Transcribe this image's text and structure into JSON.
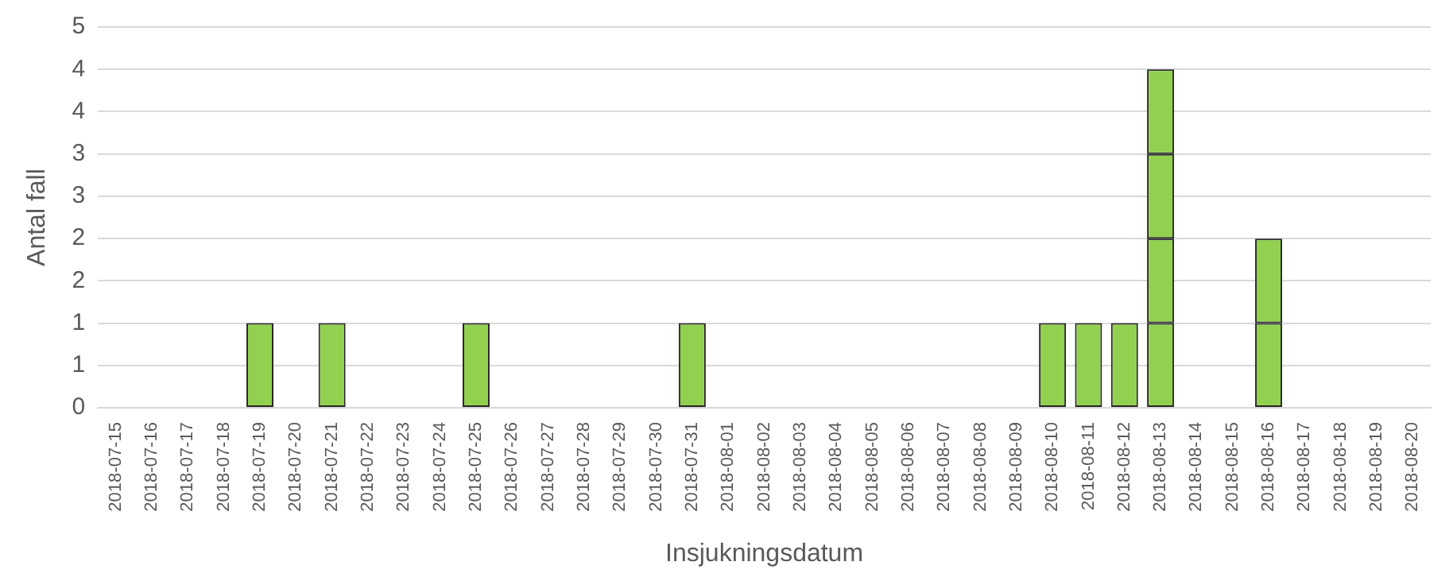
{
  "chart_data": {
    "type": "bar",
    "stacked": true,
    "xlabel": "Insjukningsdatum",
    "ylabel": "Antal fall",
    "grid": "y",
    "categories": [
      "2018-07-15",
      "2018-07-16",
      "2018-07-17",
      "2018-07-18",
      "2018-07-19",
      "2018-07-20",
      "2018-07-21",
      "2018-07-22",
      "2018-07-23",
      "2018-07-24",
      "2018-07-25",
      "2018-07-26",
      "2018-07-27",
      "2018-07-28",
      "2018-07-29",
      "2018-07-30",
      "2018-07-31",
      "2018-08-01",
      "2018-08-02",
      "2018-08-03",
      "2018-08-04",
      "2018-08-05",
      "2018-08-06",
      "2018-08-07",
      "2018-08-08",
      "2018-08-09",
      "2018-08-10",
      "2018-08-11",
      "2018-08-12",
      "2018-08-13",
      "2018-08-14",
      "2018-08-15",
      "2018-08-16",
      "2018-08-17",
      "2018-08-18",
      "2018-08-19",
      "2018-08-20"
    ],
    "series": [
      {
        "color": "#92d050",
        "values": [
          null,
          null,
          null,
          null,
          1,
          null,
          1,
          null,
          null,
          null,
          1,
          null,
          null,
          null,
          null,
          null,
          1,
          null,
          null,
          null,
          null,
          null,
          null,
          null,
          null,
          null,
          1,
          1,
          1,
          1,
          null,
          null,
          1,
          null,
          null,
          null,
          null
        ]
      },
      {
        "color": "#92d050",
        "values": [
          null,
          null,
          null,
          null,
          null,
          null,
          null,
          null,
          null,
          null,
          null,
          null,
          null,
          null,
          null,
          null,
          null,
          null,
          null,
          null,
          null,
          null,
          null,
          null,
          null,
          null,
          null,
          null,
          null,
          1,
          null,
          null,
          1,
          null,
          null,
          null,
          null
        ]
      },
      {
        "color": "#92d050",
        "values": [
          null,
          null,
          null,
          null,
          null,
          null,
          null,
          null,
          null,
          null,
          null,
          null,
          null,
          null,
          null,
          null,
          null,
          null,
          null,
          null,
          null,
          null,
          null,
          null,
          null,
          null,
          null,
          null,
          null,
          1,
          null,
          null,
          null,
          null,
          null,
          null,
          null
        ]
      },
      {
        "color": "#92d050",
        "values": [
          null,
          null,
          null,
          null,
          null,
          null,
          null,
          null,
          null,
          null,
          null,
          null,
          null,
          null,
          null,
          null,
          null,
          null,
          null,
          null,
          null,
          null,
          null,
          null,
          null,
          null,
          null,
          null,
          null,
          1,
          null,
          null,
          null,
          null,
          null,
          null,
          null
        ]
      }
    ],
    "ylim": [
      0,
      4.5
    ],
    "yticks": [
      0,
      {
        "value": 0.5,
        "label": "1"
      },
      1,
      {
        "value": 1.5,
        "label": "2"
      },
      2,
      {
        "value": 2.5,
        "label": "3"
      },
      3,
      {
        "value": 3.5,
        "label": "4"
      },
      4,
      {
        "value": 4.5,
        "label": "5"
      }
    ]
  }
}
